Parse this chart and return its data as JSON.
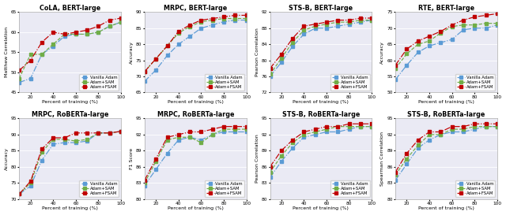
{
  "x": [
    10,
    20,
    30,
    40,
    50,
    60,
    70,
    80,
    90,
    100
  ],
  "plots": [
    {
      "title": "CoLA, BERT-large",
      "ylabel": "Matthew Correlation",
      "ylim": [
        45,
        65
      ],
      "yticks": [
        45,
        50,
        55,
        60,
        65
      ],
      "vanilla": [
        47.5,
        48.5,
        54.5,
        56.5,
        59.0,
        59.5,
        59.5,
        60.0,
        61.5,
        62.5
      ],
      "sam": [
        48.5,
        54.5,
        54.5,
        57.0,
        59.5,
        59.5,
        59.5,
        60.0,
        61.5,
        62.5
      ],
      "fsam": [
        50.5,
        53.0,
        57.5,
        60.0,
        59.5,
        60.0,
        60.5,
        61.5,
        63.0,
        63.5
      ]
    },
    {
      "title": "MRPC, BERT-large",
      "ylabel": "Accuracy",
      "ylim": [
        65,
        90
      ],
      "yticks": [
        65,
        70,
        75,
        80,
        85,
        90
      ],
      "vanilla": [
        68.5,
        72.0,
        76.5,
        80.0,
        82.5,
        85.0,
        86.0,
        87.0,
        87.5,
        87.5
      ],
      "sam": [
        71.5,
        75.5,
        79.5,
        83.5,
        85.5,
        87.0,
        87.5,
        88.0,
        88.0,
        88.0
      ],
      "fsam": [
        71.5,
        75.5,
        79.5,
        84.0,
        86.0,
        87.5,
        88.0,
        88.5,
        89.0,
        89.0
      ]
    },
    {
      "title": "STS-B, BERT-large",
      "ylabel": "Pearson Correlation",
      "ylim": [
        72,
        92
      ],
      "yticks": [
        72,
        76,
        80,
        84,
        88,
        92
      ],
      "vanilla": [
        76.0,
        79.5,
        83.5,
        86.5,
        88.0,
        88.0,
        88.5,
        89.0,
        89.5,
        90.0
      ],
      "sam": [
        76.5,
        80.5,
        84.5,
        87.5,
        88.5,
        89.0,
        89.5,
        89.5,
        90.0,
        90.0
      ],
      "fsam": [
        78.0,
        81.5,
        85.5,
        88.5,
        89.0,
        89.5,
        90.0,
        90.0,
        90.5,
        90.5
      ]
    },
    {
      "title": "RTE, BERT-large",
      "ylabel": "Accuracy",
      "ylim": [
        50,
        75
      ],
      "yticks": [
        50,
        55,
        60,
        65,
        70,
        75
      ],
      "vanilla": [
        54.0,
        58.5,
        62.5,
        64.5,
        65.5,
        66.5,
        69.5,
        70.0,
        70.0,
        71.0
      ],
      "sam": [
        57.5,
        62.0,
        65.0,
        66.0,
        68.5,
        70.5,
        71.0,
        71.0,
        71.5,
        71.5
      ],
      "fsam": [
        58.5,
        63.5,
        66.0,
        67.5,
        69.0,
        71.0,
        72.5,
        73.5,
        74.0,
        74.5
      ]
    },
    {
      "title": "MRPC, RoBERTa-large",
      "ylabel": "Accuracy",
      "ylim": [
        70,
        95
      ],
      "yticks": [
        70,
        75,
        80,
        85,
        90,
        95
      ],
      "vanilla": [
        71.5,
        74.0,
        82.0,
        87.0,
        87.5,
        87.5,
        88.0,
        90.5,
        90.5,
        91.0
      ],
      "sam": [
        71.5,
        75.0,
        84.5,
        88.5,
        88.5,
        88.0,
        88.5,
        90.5,
        90.5,
        91.0
      ],
      "fsam": [
        71.5,
        75.5,
        85.5,
        89.0,
        89.0,
        90.5,
        90.5,
        90.5,
        90.5,
        91.0
      ]
    },
    {
      "title": "MRPC, RoBERTa-large",
      "ylabel": "F1 Score",
      "ylim": [
        80,
        95
      ],
      "yticks": [
        80,
        83,
        86,
        89,
        92,
        95
      ],
      "vanilla": [
        82.5,
        85.5,
        88.5,
        91.0,
        91.5,
        91.0,
        92.0,
        92.5,
        92.5,
        92.5
      ],
      "sam": [
        83.0,
        87.0,
        91.0,
        91.5,
        91.5,
        90.5,
        92.0,
        93.0,
        93.0,
        93.0
      ],
      "fsam": [
        83.5,
        87.5,
        91.5,
        92.0,
        92.5,
        92.5,
        93.0,
        93.5,
        93.5,
        93.5
      ]
    },
    {
      "title": "STS-B, RoBERTa-large",
      "ylabel": "Pearson Correlation",
      "ylim": [
        80,
        95
      ],
      "yticks": [
        80,
        83,
        86,
        89,
        92,
        95
      ],
      "vanilla": [
        84.0,
        87.0,
        89.5,
        91.5,
        92.0,
        92.5,
        92.5,
        93.0,
        93.5,
        93.5
      ],
      "sam": [
        85.0,
        88.0,
        90.5,
        92.0,
        92.5,
        93.0,
        93.5,
        93.5,
        93.5,
        93.5
      ],
      "fsam": [
        86.0,
        89.0,
        91.0,
        92.5,
        93.0,
        93.5,
        93.5,
        94.0,
        94.0,
        94.0
      ]
    },
    {
      "title": "STS-B, RoBERTa-large",
      "ylabel": "Spearman Correlation",
      "ylim": [
        80,
        95
      ],
      "yticks": [
        80,
        83,
        86,
        89,
        92,
        95
      ],
      "vanilla": [
        83.5,
        86.5,
        89.5,
        91.0,
        92.0,
        92.5,
        92.5,
        93.0,
        93.5,
        93.5
      ],
      "sam": [
        84.5,
        87.5,
        90.0,
        92.0,
        92.0,
        93.0,
        93.0,
        93.5,
        93.5,
        93.5
      ],
      "fsam": [
        85.0,
        88.5,
        91.0,
        92.5,
        92.5,
        93.5,
        93.5,
        94.0,
        94.0,
        94.0
      ]
    }
  ],
  "color_vanilla": "#5B9BD5",
  "color_sam": "#70AD47",
  "color_fsam": "#C00000",
  "bg_color": "#EAEAF4",
  "xlabel": "Percent of training (%)",
  "legend_labels": [
    "Vanilla Adam",
    "Adam+SAM",
    "Adam+FSAM"
  ]
}
